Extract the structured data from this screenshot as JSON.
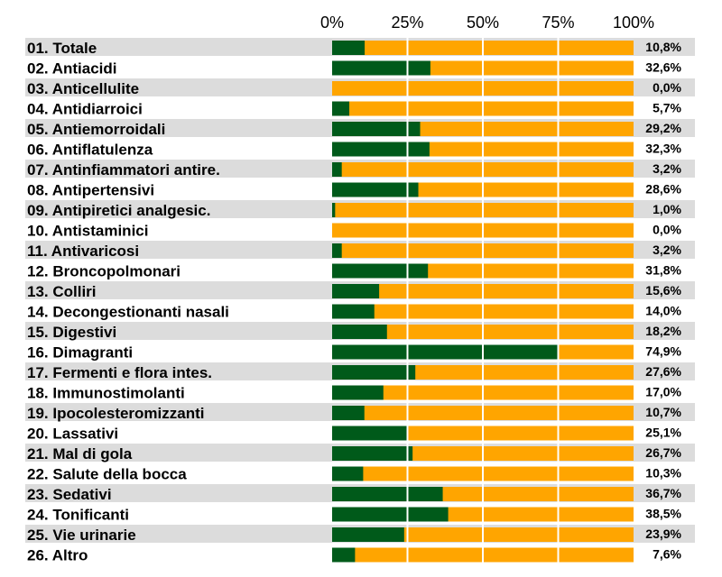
{
  "chart_data": {
    "type": "bar",
    "orientation": "horizontal",
    "stacked": true,
    "title": "",
    "xlabel": "",
    "ylabel": "",
    "xlim": [
      0,
      100
    ],
    "ticks": [
      "0%",
      "25%",
      "50%",
      "75%",
      "100%"
    ],
    "tick_values": [
      0,
      25,
      50,
      75,
      100
    ],
    "grid": true,
    "legend": "none",
    "colors": {
      "share": "#005a1a",
      "rest": "#ffa500",
      "row_band": "#dcdcdc"
    },
    "categories": [
      "01. Totale",
      "02. Antiacidi",
      "03. Anticellulite",
      "04. Antidiarroici",
      "05. Antiemorroidali",
      "06. Antiflatulenza",
      "07. Antinfiammatori antire.",
      "08. Antipertensivi",
      "09. Antipiretici analgesic.",
      "10. Antistaminici",
      "11. Antivaricosi",
      "12. Broncopolmonari",
      "13. Colliri",
      "14. Decongestionanti nasali",
      "15. Digestivi",
      "16. Dimagranti",
      "17. Fermenti e flora intes.",
      "18. Immunostimolanti",
      "19. Ipocolesteromizzanti",
      "20. Lassativi",
      "21. Mal di gola",
      "22. Salute della bocca",
      "23. Sedativi",
      "24. Tonificanti",
      "25. Vie urinarie",
      "26. Altro"
    ],
    "values": [
      10.8,
      32.6,
      0.0,
      5.7,
      29.2,
      32.3,
      3.2,
      28.6,
      1.0,
      0.0,
      3.2,
      31.8,
      15.6,
      14.0,
      18.2,
      74.9,
      27.6,
      17.0,
      10.7,
      25.1,
      26.7,
      10.3,
      36.7,
      38.5,
      23.9,
      7.6
    ],
    "value_labels": [
      "10,8%",
      "32,6%",
      "0,0%",
      "5,7%",
      "29,2%",
      "32,3%",
      "3,2%",
      "28,6%",
      "1,0%",
      "0,0%",
      "3,2%",
      "31,8%",
      "15,6%",
      "14,0%",
      "18,2%",
      "74,9%",
      "27,6%",
      "17,0%",
      "10,7%",
      "25,1%",
      "26,7%",
      "10,3%",
      "36,7%",
      "38,5%",
      "23,9%",
      "7,6%"
    ]
  }
}
